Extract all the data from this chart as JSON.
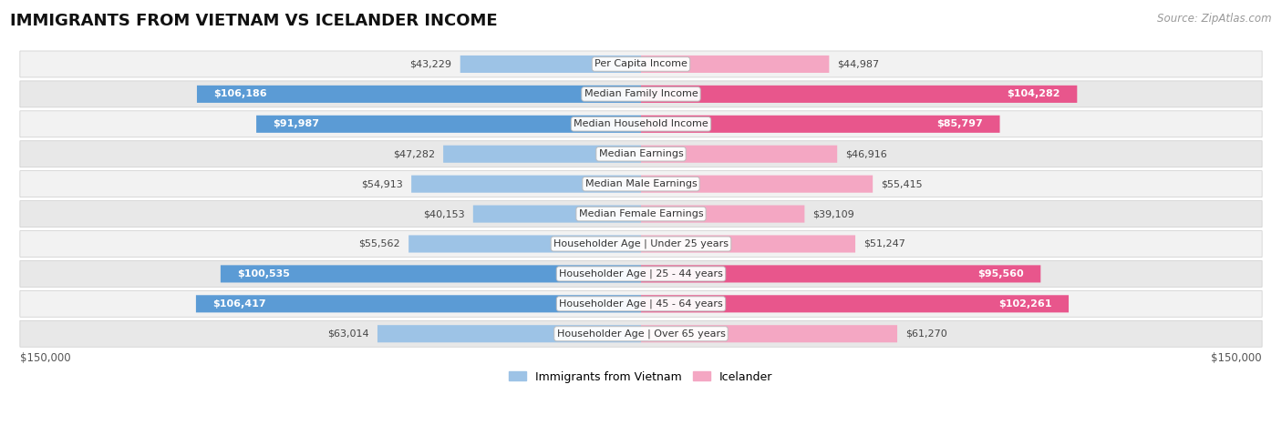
{
  "title": "IMMIGRANTS FROM VIETNAM VS ICELANDER INCOME",
  "source": "Source: ZipAtlas.com",
  "categories": [
    "Per Capita Income",
    "Median Family Income",
    "Median Household Income",
    "Median Earnings",
    "Median Male Earnings",
    "Median Female Earnings",
    "Householder Age | Under 25 years",
    "Householder Age | 25 - 44 years",
    "Householder Age | 45 - 64 years",
    "Householder Age | Over 65 years"
  ],
  "vietnam_values": [
    43229,
    106186,
    91987,
    47282,
    54913,
    40153,
    55562,
    100535,
    106417,
    63014
  ],
  "icelander_values": [
    44987,
    104282,
    85797,
    46916,
    55415,
    39109,
    51247,
    95560,
    102261,
    61270
  ],
  "vietnam_color_large": "#5b9bd5",
  "vietnam_color_small": "#9dc3e6",
  "icelander_color_large": "#e8568c",
  "icelander_color_small": "#f4a7c3",
  "row_bg_light": "#f2f2f2",
  "row_bg_dark": "#e8e8e8",
  "max_value": 150000,
  "legend_vietnam": "Immigrants from Vietnam",
  "legend_icelander": "Icelander",
  "axis_label_left": "$150,000",
  "axis_label_right": "$150,000",
  "title_fontsize": 13,
  "source_fontsize": 8.5,
  "bar_label_fontsize": 8,
  "category_fontsize": 8,
  "axis_fontsize": 8.5,
  "large_threshold": 65000
}
